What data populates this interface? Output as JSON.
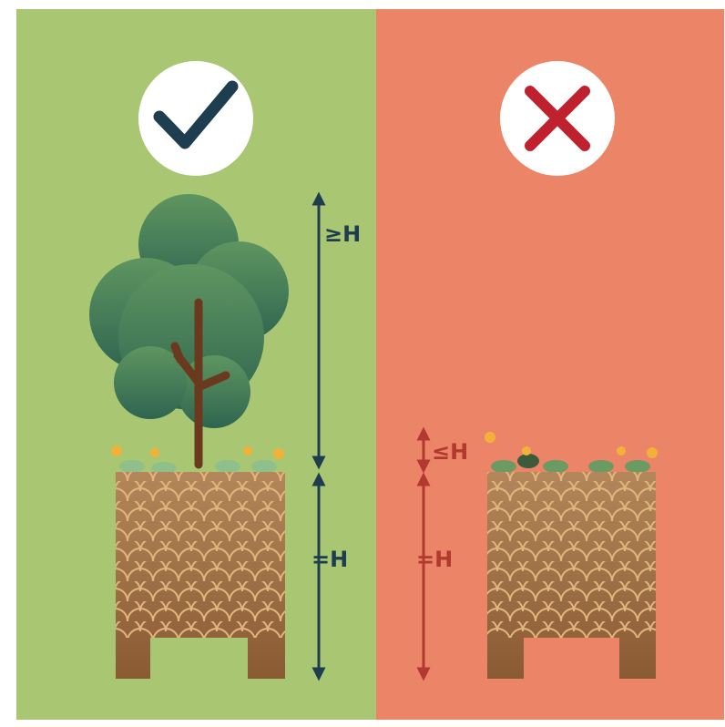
{
  "left": {
    "top_label": "≥H",
    "bottom_label": "=H"
  },
  "right": {
    "top_label": "≤H",
    "bottom_label": "=H"
  }
}
